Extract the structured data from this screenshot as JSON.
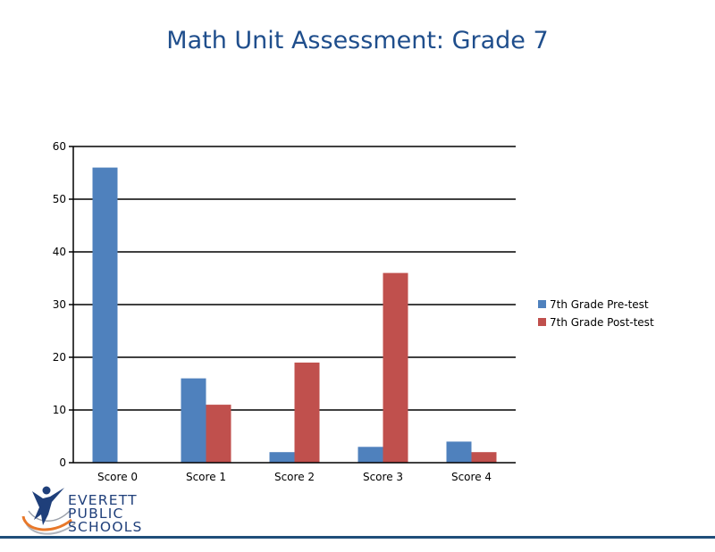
{
  "chart_data": {
    "type": "bar",
    "title": "Math Unit Assessment: Grade 7",
    "categories": [
      "Score 0",
      "Score 1",
      "Score 2",
      "Score 3",
      "Score 4"
    ],
    "series": [
      {
        "name": "7th Grade Pre-test",
        "color": "#4f81bd",
        "values": [
          56,
          16,
          2,
          3,
          4
        ]
      },
      {
        "name": "7th Grade Post-test",
        "color": "#c0504d",
        "values": [
          0,
          11,
          19,
          36,
          2
        ]
      }
    ],
    "yticks": [
      0,
      10,
      20,
      30,
      40,
      50,
      60
    ],
    "ylim": [
      0,
      60
    ],
    "grid": true,
    "legend_position": "right"
  },
  "logo": {
    "line1": "EVERETT",
    "line2": "PUBLIC",
    "line3": "SCHOOLS"
  },
  "colors": {
    "title": "#1f4e8c",
    "rule": "#1f4e7a"
  }
}
